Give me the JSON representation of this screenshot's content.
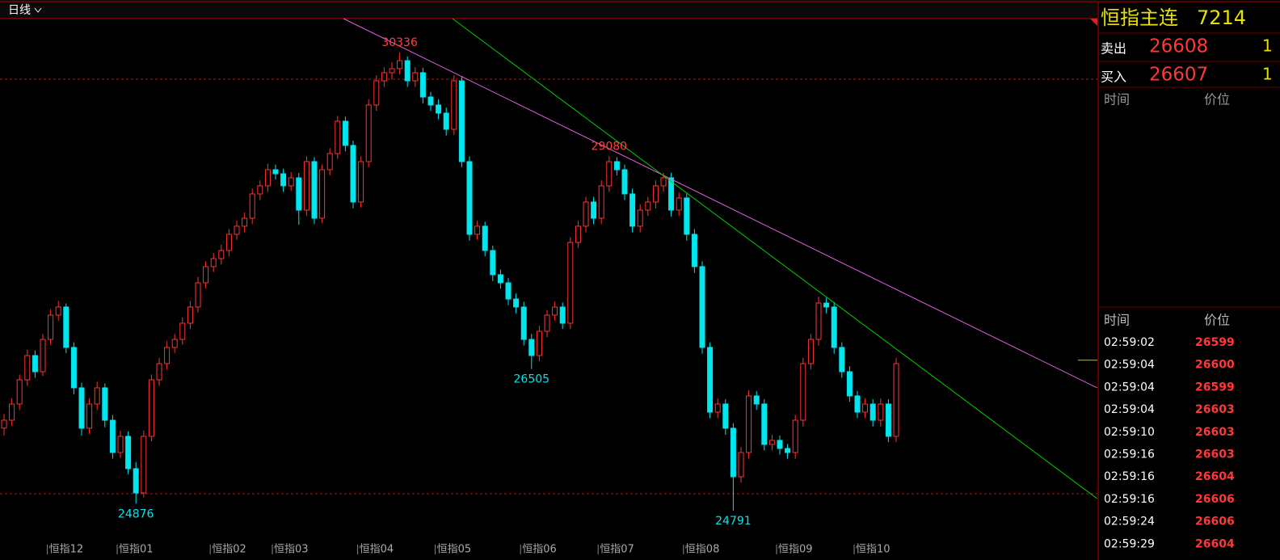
{
  "toolbar": {
    "period": "日线"
  },
  "chart_data": {
    "type": "candlestick",
    "ylim": [
      24468,
      30747
    ],
    "up_color": "#ff3232",
    "down_color": "#00e5ee",
    "candles": [
      [
        25790,
        25960,
        25700,
        25886
      ],
      [
        25886,
        26150,
        25820,
        26082
      ],
      [
        26082,
        26440,
        26010,
        26375
      ],
      [
        26375,
        26740,
        26300,
        26669
      ],
      [
        26669,
        26730,
        26400,
        26473
      ],
      [
        26473,
        26930,
        26420,
        26864
      ],
      [
        26864,
        27230,
        26800,
        27158
      ],
      [
        27158,
        27330,
        27090,
        27256
      ],
      [
        27256,
        27300,
        26700,
        26767
      ],
      [
        26767,
        26830,
        26200,
        26278
      ],
      [
        26278,
        26340,
        25700,
        25789
      ],
      [
        25789,
        26150,
        25720,
        26082
      ],
      [
        26082,
        26350,
        26010,
        26278
      ],
      [
        26278,
        26330,
        25800,
        25886
      ],
      [
        25886,
        25950,
        25420,
        25495
      ],
      [
        25495,
        25760,
        25430,
        25691
      ],
      [
        25691,
        25750,
        25230,
        25300
      ],
      [
        25300,
        25380,
        24876,
        25006
      ],
      [
        25006,
        25760,
        24950,
        25691
      ],
      [
        25691,
        26440,
        25630,
        26375
      ],
      [
        26375,
        26640,
        26300,
        26571
      ],
      [
        26571,
        26840,
        26500,
        26767
      ],
      [
        26767,
        26930,
        26700,
        26864
      ],
      [
        26864,
        27130,
        26800,
        27060
      ],
      [
        27060,
        27330,
        26990,
        27256
      ],
      [
        27256,
        27620,
        27190,
        27549
      ],
      [
        27549,
        27810,
        27480,
        27745
      ],
      [
        27745,
        27910,
        27680,
        27842
      ],
      [
        27842,
        28010,
        27770,
        27940
      ],
      [
        27940,
        28200,
        27870,
        28136
      ],
      [
        28136,
        28300,
        28070,
        28234
      ],
      [
        28234,
        28400,
        28160,
        28331
      ],
      [
        28331,
        28690,
        28260,
        28625
      ],
      [
        28625,
        28790,
        28550,
        28723
      ],
      [
        28723,
        28990,
        28650,
        28918
      ],
      [
        28918,
        28980,
        28800,
        28869
      ],
      [
        28869,
        28930,
        28650,
        28723
      ],
      [
        28723,
        28890,
        28660,
        28820
      ],
      [
        28820,
        28880,
        28250,
        28429
      ],
      [
        28429,
        29080,
        28360,
        29016
      ],
      [
        29016,
        29070,
        28260,
        28331
      ],
      [
        28331,
        28980,
        28270,
        28918
      ],
      [
        28918,
        29180,
        28850,
        29114
      ],
      [
        29114,
        29570,
        29050,
        29505
      ],
      [
        29505,
        29560,
        29140,
        29212
      ],
      [
        29212,
        29270,
        28450,
        28527
      ],
      [
        28527,
        29080,
        28460,
        29016
      ],
      [
        29016,
        29770,
        28950,
        29701
      ],
      [
        29701,
        30060,
        29630,
        29994
      ],
      [
        29994,
        30160,
        29920,
        30092
      ],
      [
        30092,
        30220,
        30010,
        30141
      ],
      [
        30141,
        30336,
        30070,
        30238
      ],
      [
        30238,
        30290,
        29920,
        29994
      ],
      [
        29994,
        30160,
        29920,
        30092
      ],
      [
        30092,
        30150,
        29720,
        29798
      ],
      [
        29798,
        29860,
        29630,
        29701
      ],
      [
        29701,
        29770,
        29530,
        29603
      ],
      [
        29603,
        29670,
        29330,
        29407
      ],
      [
        29407,
        30060,
        29340,
        29994
      ],
      [
        29994,
        30050,
        28950,
        29016
      ],
      [
        29016,
        29080,
        28060,
        28136
      ],
      [
        28136,
        28300,
        28070,
        28234
      ],
      [
        28234,
        28290,
        27870,
        27940
      ],
      [
        27940,
        28000,
        27570,
        27647
      ],
      [
        27647,
        27710,
        27480,
        27549
      ],
      [
        27549,
        27610,
        27280,
        27353
      ],
      [
        27353,
        27420,
        27180,
        27256
      ],
      [
        27256,
        27320,
        26790,
        26864
      ],
      [
        26864,
        26930,
        26505,
        26669
      ],
      [
        26669,
        27030,
        26600,
        26962
      ],
      [
        26962,
        27220,
        26890,
        27158
      ],
      [
        27158,
        27320,
        27090,
        27256
      ],
      [
        27256,
        27310,
        26990,
        27060
      ],
      [
        27060,
        28100,
        26990,
        28038
      ],
      [
        28038,
        28300,
        27970,
        28234
      ],
      [
        28234,
        28590,
        28160,
        28527
      ],
      [
        28527,
        28590,
        28260,
        28331
      ],
      [
        28331,
        28790,
        28260,
        28723
      ],
      [
        28723,
        29080,
        28650,
        29016
      ],
      [
        29016,
        29070,
        28850,
        28918
      ],
      [
        28918,
        28980,
        28550,
        28625
      ],
      [
        28625,
        28690,
        28160,
        28234
      ],
      [
        28234,
        28500,
        28160,
        28429
      ],
      [
        28429,
        28590,
        28360,
        28527
      ],
      [
        28527,
        28790,
        28450,
        28723
      ],
      [
        28723,
        28880,
        28650,
        28820
      ],
      [
        28820,
        28880,
        28350,
        28429
      ],
      [
        28429,
        28640,
        28360,
        28576
      ],
      [
        28576,
        28630,
        28060,
        28136
      ],
      [
        28136,
        28200,
        27670,
        27745
      ],
      [
        27745,
        27810,
        26690,
        26767
      ],
      [
        26767,
        26830,
        25910,
        25984
      ],
      [
        25984,
        26150,
        25910,
        26082
      ],
      [
        26082,
        26140,
        25710,
        25789
      ],
      [
        25789,
        25850,
        24791,
        25202
      ],
      [
        25202,
        25560,
        25130,
        25495
      ],
      [
        25495,
        26250,
        25420,
        26180
      ],
      [
        26180,
        26240,
        26010,
        26082
      ],
      [
        26082,
        26140,
        25520,
        25593
      ],
      [
        25593,
        25710,
        25520,
        25642
      ],
      [
        25642,
        25700,
        25470,
        25544
      ],
      [
        25544,
        25600,
        25420,
        25495
      ],
      [
        25495,
        25950,
        25420,
        25886
      ],
      [
        25886,
        26640,
        25810,
        26571
      ],
      [
        26571,
        26930,
        26500,
        26864
      ],
      [
        26864,
        27380,
        26790,
        27304
      ],
      [
        27304,
        27370,
        27180,
        27256
      ],
      [
        27256,
        27320,
        26690,
        26767
      ],
      [
        26767,
        26830,
        26400,
        26473
      ],
      [
        26473,
        26540,
        26110,
        26180
      ],
      [
        26180,
        26240,
        25910,
        25984
      ],
      [
        25984,
        26150,
        25910,
        26082
      ],
      [
        26082,
        26140,
        25810,
        25886
      ],
      [
        25886,
        26150,
        25810,
        26082
      ],
      [
        26082,
        26140,
        25620,
        25691
      ],
      [
        25691,
        26640,
        25620,
        26571
      ]
    ],
    "x_labels": [
      {
        "label": "恒指12",
        "index": 6
      },
      {
        "label": "恒指01",
        "index": 15
      },
      {
        "label": "恒指02",
        "index": 27
      },
      {
        "label": "恒指03",
        "index": 35
      },
      {
        "label": "恒指04",
        "index": 46
      },
      {
        "label": "恒指05",
        "index": 56
      },
      {
        "label": "恒指06",
        "index": 67
      },
      {
        "label": "恒指07",
        "index": 77
      },
      {
        "label": "恒指08",
        "index": 88
      },
      {
        "label": "恒指09",
        "index": 100
      },
      {
        "label": "恒指10",
        "index": 110
      }
    ],
    "annotations": [
      {
        "index": 51,
        "value": 30336,
        "color": "#ff4040",
        "position": "above"
      },
      {
        "index": 78,
        "value": 29080,
        "color": "#ff4040",
        "position": "above"
      },
      {
        "index": 68,
        "value": 26505,
        "color": "#00e5ee",
        "position": "below"
      },
      {
        "index": 17,
        "value": 24876,
        "color": "#00e5ee",
        "position": "below"
      },
      {
        "index": 94,
        "value": 24791,
        "color": "#00e5ee",
        "position": "below"
      }
    ],
    "trendlines": [
      {
        "color": "#e060e0",
        "start": [
          43.75,
          30747
        ],
        "end": [
          140.9,
          26278
        ]
      },
      {
        "color": "#00d000",
        "start": [
          57.8,
          30747
        ],
        "end": [
          140.9,
          24938
        ]
      }
    ],
    "ref_lines": [
      {
        "value": 30013,
        "color": "#a02020"
      },
      {
        "value": 24996,
        "color": "#a02020"
      }
    ],
    "price_marker": {
      "value": 26612,
      "color": "#d0c000"
    }
  },
  "quote_panel": {
    "name": "恒指主连",
    "code": "7214",
    "ask": {
      "label": "卖出",
      "price": "26608",
      "qty": "1"
    },
    "bid": {
      "label": "买入",
      "price": "26607",
      "qty": "1"
    },
    "header1": [
      "时间",
      "价位"
    ],
    "header2": [
      "时间",
      "价位"
    ],
    "trades": [
      [
        "02:59:02",
        "26599"
      ],
      [
        "02:59:04",
        "26600"
      ],
      [
        "02:59:04",
        "26599"
      ],
      [
        "02:59:04",
        "26603"
      ],
      [
        "02:59:10",
        "26603"
      ],
      [
        "02:59:16",
        "26603"
      ],
      [
        "02:59:16",
        "26604"
      ],
      [
        "02:59:16",
        "26606"
      ],
      [
        "02:59:24",
        "26606"
      ],
      [
        "02:59:29",
        "26604"
      ]
    ]
  }
}
